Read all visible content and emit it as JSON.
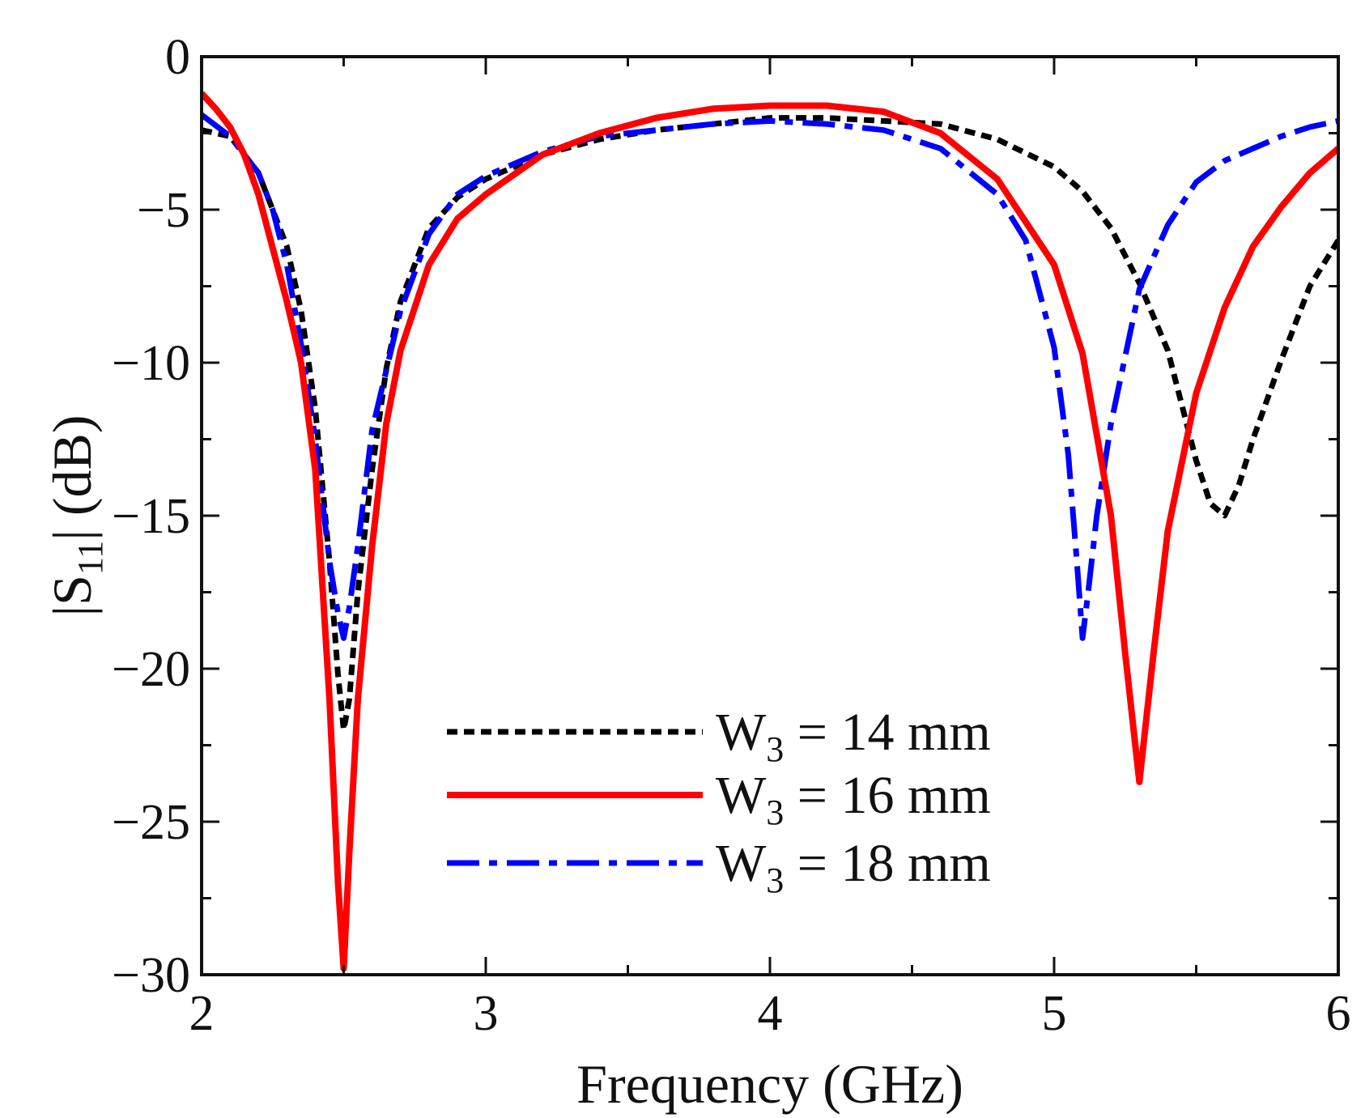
{
  "chart_data": {
    "type": "line",
    "title": "",
    "xlabel": "Frequency (GHz)",
    "ylabel_main": "|S",
    "ylabel_sub": "11",
    "ylabel_tail": "| (dB)",
    "xlim": [
      2,
      6
    ],
    "ylim": [
      -30,
      0
    ],
    "x_ticks": [
      2,
      3,
      4,
      5,
      6
    ],
    "x_tick_labels": [
      "2",
      "3",
      "4",
      "5",
      "6"
    ],
    "x_minor_ticks": [
      2.5,
      3.5,
      4.5,
      5.5
    ],
    "y_ticks": [
      0,
      -5,
      -10,
      -15,
      -20,
      -25,
      -30
    ],
    "y_tick_labels": [
      "0",
      "−5",
      "−10",
      "−15",
      "−20",
      "−25",
      "−30"
    ],
    "y_minor_ticks": [
      -2.5,
      -7.5,
      -12.5,
      -17.5,
      -22.5,
      -27.5
    ],
    "grid": false,
    "legend_position": "bottom-center",
    "series": [
      {
        "name": "W3 = 14 mm",
        "label_main": "W",
        "label_sub": "3",
        "label_tail": " = 14 mm",
        "color": "#000000",
        "style": "dotted",
        "x": [
          2.0,
          2.1,
          2.2,
          2.3,
          2.35,
          2.4,
          2.45,
          2.48,
          2.5,
          2.52,
          2.55,
          2.6,
          2.65,
          2.7,
          2.8,
          2.9,
          3.0,
          3.2,
          3.4,
          3.6,
          3.8,
          4.0,
          4.2,
          4.4,
          4.6,
          4.8,
          5.0,
          5.1,
          5.2,
          5.3,
          5.4,
          5.5,
          5.55,
          5.6,
          5.65,
          5.7,
          5.8,
          5.9,
          6.0
        ],
        "y": [
          -2.4,
          -2.6,
          -3.8,
          -6.2,
          -8.3,
          -11.5,
          -16.5,
          -20.2,
          -22.0,
          -21.0,
          -17.5,
          -13.5,
          -10.2,
          -8.0,
          -5.6,
          -4.6,
          -4.0,
          -3.2,
          -2.7,
          -2.4,
          -2.2,
          -2.0,
          -2.0,
          -2.1,
          -2.2,
          -2.7,
          -3.6,
          -4.4,
          -5.6,
          -7.4,
          -9.6,
          -13.2,
          -14.6,
          -15.0,
          -14.0,
          -12.5,
          -9.9,
          -7.5,
          -6.0
        ]
      },
      {
        "name": "W3 = 16 mm",
        "label_main": "W",
        "label_sub": "3",
        "label_tail": " = 16 mm",
        "color": "#ff0000",
        "style": "solid",
        "x": [
          2.0,
          2.05,
          2.1,
          2.15,
          2.2,
          2.3,
          2.35,
          2.4,
          2.45,
          2.48,
          2.5,
          2.52,
          2.55,
          2.6,
          2.65,
          2.7,
          2.8,
          2.9,
          3.0,
          3.2,
          3.4,
          3.6,
          3.8,
          4.0,
          4.2,
          4.4,
          4.6,
          4.8,
          5.0,
          5.1,
          5.2,
          5.25,
          5.3,
          5.35,
          5.4,
          5.5,
          5.6,
          5.7,
          5.8,
          5.9,
          6.0
        ],
        "y": [
          -1.2,
          -1.7,
          -2.3,
          -3.2,
          -4.5,
          -8.0,
          -10.0,
          -13.5,
          -21.0,
          -27.0,
          -29.8,
          -26.0,
          -21.0,
          -16.0,
          -12.0,
          -9.6,
          -6.8,
          -5.3,
          -4.5,
          -3.2,
          -2.5,
          -2.0,
          -1.7,
          -1.6,
          -1.6,
          -1.8,
          -2.5,
          -4.0,
          -6.8,
          -9.7,
          -15.0,
          -19.5,
          -23.7,
          -19.5,
          -15.5,
          -11.0,
          -8.2,
          -6.2,
          -4.9,
          -3.8,
          -3.0
        ]
      },
      {
        "name": "W3 = 18 mm",
        "label_main": "W",
        "label_sub": "3",
        "label_tail": " = 18 mm",
        "color": "#0000ff",
        "style": "dashdot",
        "x": [
          2.0,
          2.1,
          2.2,
          2.25,
          2.3,
          2.35,
          2.4,
          2.45,
          2.48,
          2.5,
          2.52,
          2.55,
          2.6,
          2.7,
          2.8,
          2.9,
          3.0,
          3.2,
          3.4,
          3.6,
          3.8,
          4.0,
          4.2,
          4.4,
          4.6,
          4.8,
          4.9,
          5.0,
          5.05,
          5.08,
          5.1,
          5.12,
          5.15,
          5.2,
          5.3,
          5.4,
          5.5,
          5.6,
          5.7,
          5.8,
          5.9,
          6.0
        ],
        "y": [
          -1.9,
          -2.6,
          -3.8,
          -5.0,
          -6.8,
          -9.4,
          -12.5,
          -16.5,
          -18.2,
          -19.0,
          -18.0,
          -16.0,
          -12.2,
          -8.3,
          -5.8,
          -4.5,
          -3.9,
          -3.1,
          -2.6,
          -2.4,
          -2.2,
          -2.1,
          -2.2,
          -2.4,
          -3.0,
          -4.5,
          -6.0,
          -9.5,
          -13.0,
          -16.5,
          -19.0,
          -17.5,
          -15.0,
          -12.0,
          -7.6,
          -5.5,
          -4.1,
          -3.4,
          -3.0,
          -2.6,
          -2.3,
          -2.1
        ]
      }
    ]
  }
}
